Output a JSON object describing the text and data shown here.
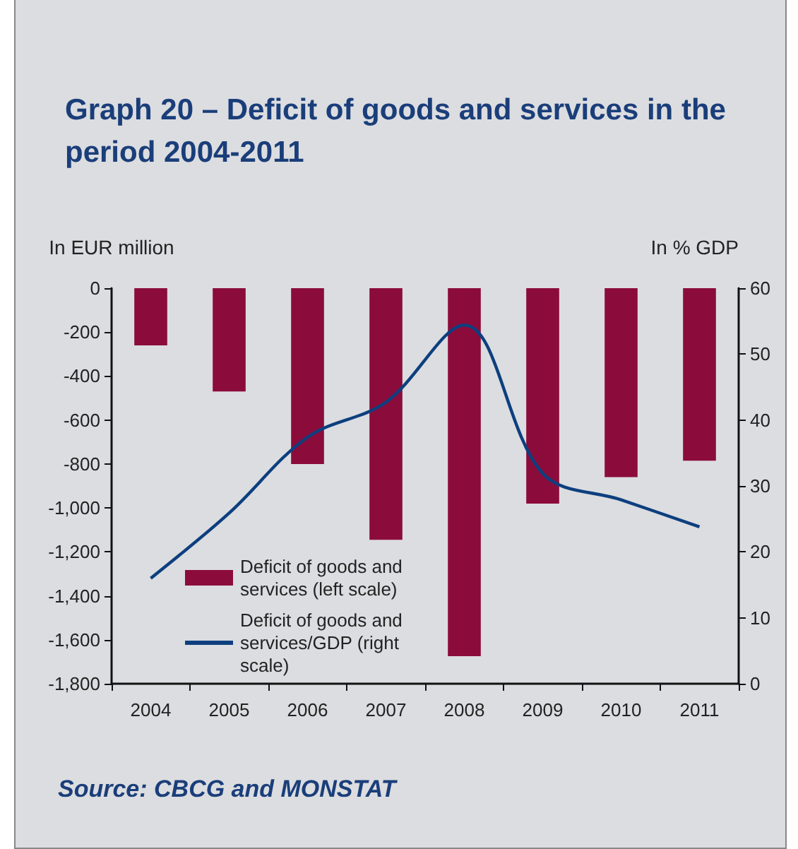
{
  "chart_data": {
    "type": "bar",
    "title": "Graph 20 – Deficit of goods and services in the period 2004-2011",
    "ylabel": "In EUR million",
    "y2label": "In % GDP",
    "categories": [
      "2004",
      "2005",
      "2006",
      "2007",
      "2008",
      "2009",
      "2010",
      "2011"
    ],
    "series": [
      {
        "name": "Deficit of goods and services (left scale)",
        "color": "#8b0c3a",
        "values": [
          -260,
          -470,
          -800,
          -1145,
          -1675,
          -980,
          -860,
          -785
        ]
      },
      {
        "name": "Deficit of goods and services/GDP (right scale)",
        "type": "line",
        "axis": "y2",
        "color": "#0d3f7f",
        "values": [
          16.0,
          25.9,
          37.4,
          42.7,
          54.4,
          31.9,
          27.9,
          23.8
        ]
      }
    ],
    "ylim": [
      -1800,
      0
    ],
    "yticks": [
      {
        "value": -1800,
        "label": "-1,800"
      },
      {
        "value": -1600,
        "label": "-1,600"
      },
      {
        "value": -1400,
        "label": "-1,400"
      },
      {
        "value": -1200,
        "label": "-1,200"
      },
      {
        "value": -1000,
        "label": "-1,000"
      },
      -800,
      -600,
      -400,
      -200,
      0
    ],
    "y2lim": [
      0,
      60
    ],
    "y2ticks": [
      0,
      10,
      20,
      30,
      40,
      50,
      60
    ],
    "legend": "bottom left",
    "marker": "none",
    "annotations": [
      "Source: CBCG and MONSTAT"
    ]
  }
}
